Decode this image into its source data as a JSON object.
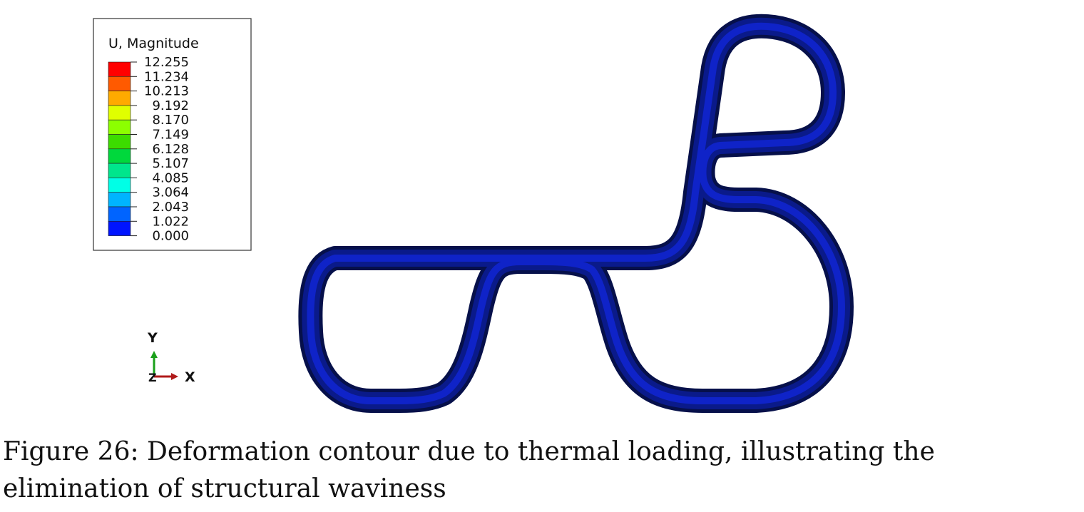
{
  "legend": {
    "title": "U, Magnitude",
    "values": [
      "12.255",
      "11.234",
      "10.213",
      "9.192",
      "8.170",
      "7.149",
      "6.128",
      "5.107",
      "4.085",
      "3.064",
      "2.043",
      "1.022",
      "0.000"
    ],
    "band_colors": [
      "#ff0000",
      "#ff5a00",
      "#ffaa00",
      "#e0ff00",
      "#8cff00",
      "#3cdc00",
      "#00d83c",
      "#00e68c",
      "#00ffe6",
      "#00b4ff",
      "#0064ff",
      "#0014ff"
    ]
  },
  "axes_triad": {
    "y_label": "Y",
    "x_label": "X",
    "z_label": "Z"
  },
  "caption": {
    "text": "Figure 26: Deformation contour due to thermal loading, illustrating the elimination of structural waviness"
  },
  "colors": {
    "structure_outer": "#0a1a8a",
    "structure_inner": "#0f23c8",
    "structure_edge": "#06104a"
  }
}
